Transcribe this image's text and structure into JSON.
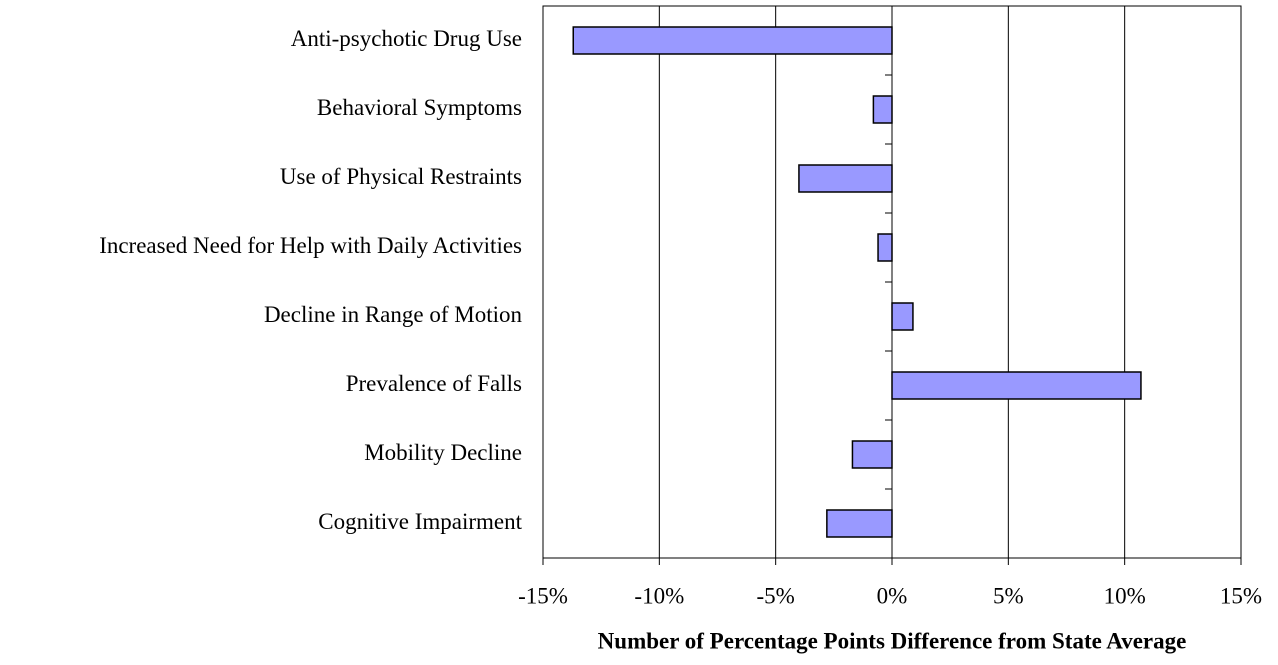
{
  "chart_data": {
    "type": "barh",
    "xlabel": "Number of Percentage Points Difference from State Average",
    "categories": [
      "Anti-psychotic Drug Use",
      "Behavioral Symptoms",
      "Use of Physical Restraints",
      "Increased Need for Help with Daily Activities",
      "Decline in Range of Motion",
      "Prevalence of Falls",
      "Mobility Decline",
      "Cognitive Impairment"
    ],
    "values": [
      -13.7,
      -0.8,
      -4.0,
      -0.6,
      0.9,
      10.7,
      -1.7,
      -2.8
    ],
    "color": "#9999ff",
    "xlim": [
      -15,
      15
    ],
    "xticks": [
      {
        "value": -15,
        "label": "-15%"
      },
      {
        "value": -10,
        "label": "-10%"
      },
      {
        "value": -5,
        "label": "-5%"
      },
      {
        "value": 0,
        "label": "0%"
      },
      {
        "value": 5,
        "label": "5%"
      },
      {
        "value": 10,
        "label": "10%"
      },
      {
        "value": 15,
        "label": "15%"
      }
    ],
    "grid": true
  }
}
